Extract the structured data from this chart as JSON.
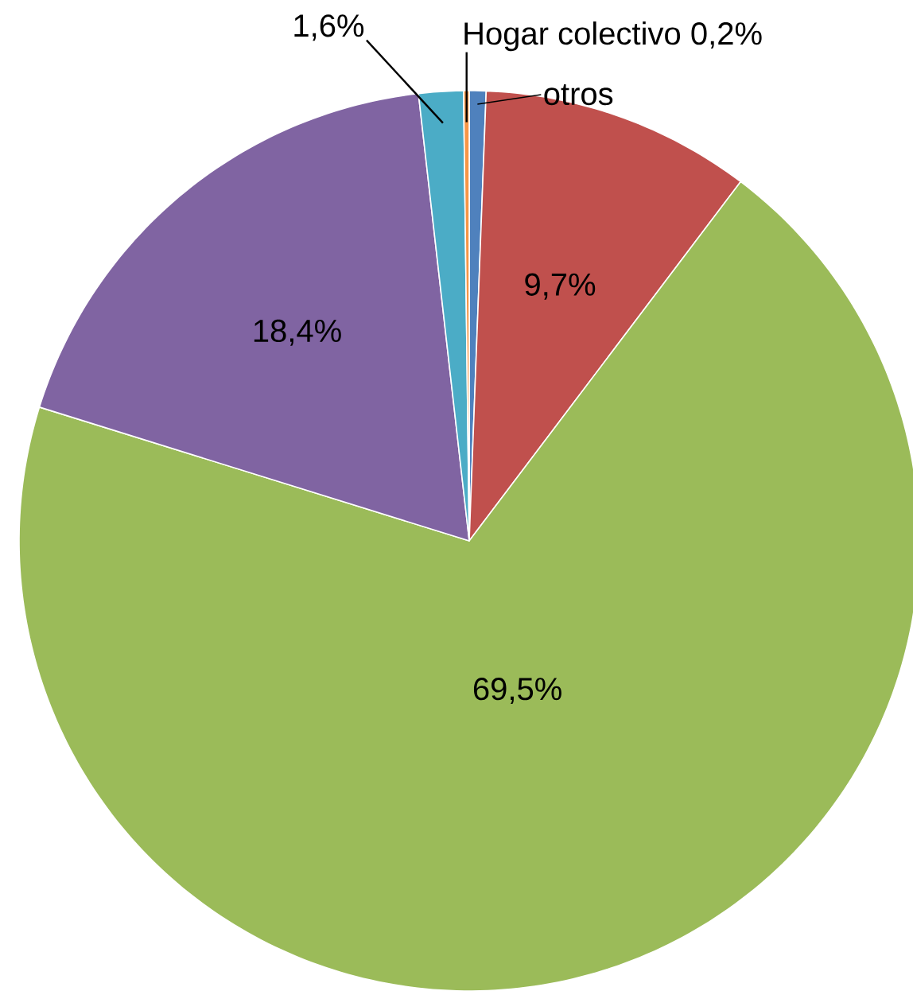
{
  "chart_data": {
    "type": "pie",
    "categories": [
      "otros",
      null,
      null,
      null,
      null,
      "Hogar colectivo"
    ],
    "values": [
      0.6,
      9.7,
      69.5,
      18.4,
      1.6,
      0.2
    ],
    "value_labels": [
      null,
      "9,7%",
      "69,5%",
      "18,4%",
      "1,6%",
      "0,2%"
    ],
    "colors": [
      "#4f81bd",
      "#c0504d",
      "#9bbb59",
      "#8064a2",
      "#4bacc6",
      "#f79646"
    ]
  }
}
